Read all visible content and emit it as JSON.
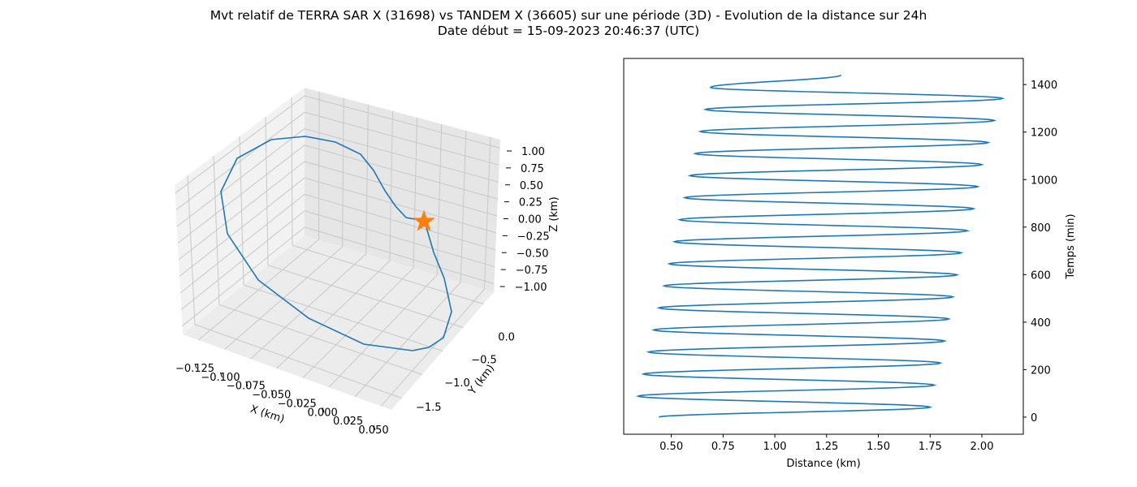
{
  "figure": {
    "title_line1": "Mvt relatif de TERRA SAR X (31698) vs TANDEM X (36605) sur une période (3D) - Evolution de la distance sur 24h",
    "title_line2": "Date début = 15-09-2023 20:46:37 (UTC)"
  },
  "colors": {
    "series": "#1f77b4",
    "marker": "#ff7f0e",
    "pane": "#f2f2f2",
    "grid": "#c8c8c8"
  },
  "chart_data": [
    {
      "type": "line",
      "projection": "3d",
      "title": "",
      "xlabel": "X (km)",
      "ylabel": "Y (km)",
      "zlabel": "Z (km)",
      "xlim": [
        -0.13,
        0.055
      ],
      "ylim": [
        -1.75,
        0.15
      ],
      "zlim": [
        -1.05,
        1.1
      ],
      "xticks": [
        "−0.125",
        "−0.100",
        "−0.075",
        "−0.050",
        "−0.025",
        "0.000",
        "0.025",
        "0.050"
      ],
      "yticks": [
        "−1.5",
        "−1.0",
        "−0.5",
        "0.0"
      ],
      "zticks": [
        "−1.00",
        "−0.75",
        "−0.50",
        "−0.25",
        "0.00",
        "0.25",
        "0.50",
        "0.75",
        "1.00"
      ],
      "grid": true,
      "series": [
        {
          "x": [
            0.0,
            0.018,
            0.033,
            0.046,
            0.053,
            0.055,
            0.051,
            0.042,
            0.029,
            0.011,
            -0.01,
            -0.034,
            -0.058,
            -0.081,
            -0.101,
            -0.116,
            -0.125,
            -0.128,
            -0.124,
            -0.113,
            -0.096,
            -0.074,
            -0.05,
            -0.024,
            0.0
          ],
          "y": [
            0.0,
            -0.125,
            -0.247,
            -0.365,
            -0.479,
            -0.586,
            -0.686,
            -0.777,
            -0.857,
            -0.926,
            -0.983,
            -1.026,
            -1.055,
            -1.07,
            -1.07,
            -1.055,
            -1.025,
            -0.981,
            -0.924,
            -0.854,
            -0.773,
            -0.681,
            -0.58,
            -0.47,
            -0.354
          ],
          "z": [
            0.0,
            -0.258,
            -0.5,
            -0.707,
            -0.866,
            -0.966,
            -1.0,
            -0.966,
            -0.866,
            -0.707,
            -0.5,
            -0.259,
            0.0,
            0.259,
            0.5,
            0.707,
            0.866,
            0.966,
            1.0,
            0.966,
            0.866,
            0.707,
            0.5,
            0.259,
            0.0
          ]
        }
      ],
      "markers": [
        {
          "x": 0.0,
          "y": 0.0,
          "z": 0.0,
          "shape": "star"
        }
      ]
    },
    {
      "type": "line",
      "title": "",
      "xlabel": "Distance (km)",
      "ylabel": "Temps (min)",
      "xlim": [
        0.27,
        2.2
      ],
      "ylim": [
        -72,
        1510
      ],
      "xticks": [
        0.5,
        0.75,
        1.0,
        1.25,
        1.5,
        1.75,
        2.0
      ],
      "xtick_labels": [
        "0.50",
        "0.75",
        "1.00",
        "1.25",
        "1.50",
        "1.75",
        "2.00"
      ],
      "yticks": [
        0,
        200,
        400,
        600,
        800,
        1000,
        1200,
        1400
      ],
      "ytick_labels": [
        "0",
        "200",
        "400",
        "600",
        "800",
        "1000",
        "1200",
        "1400"
      ],
      "y_axis_side": "right",
      "grid": false,
      "series": [
        {
          "period_min": 94.8,
          "start": {
            "t": 0,
            "distance": 0.44
          },
          "end": {
            "t": 1440,
            "distance": 1.32
          },
          "minima": [
            {
              "t": 41,
              "distance": 0.34
            },
            {
              "t": 136,
              "distance": 0.365
            },
            {
              "t": 231,
              "distance": 0.39
            },
            {
              "t": 326,
              "distance": 0.415
            },
            {
              "t": 420,
              "distance": 0.44
            },
            {
              "t": 515,
              "distance": 0.465
            },
            {
              "t": 610,
              "distance": 0.49
            },
            {
              "t": 705,
              "distance": 0.515
            },
            {
              "t": 800,
              "distance": 0.54
            },
            {
              "t": 895,
              "distance": 0.565
            },
            {
              "t": 990,
              "distance": 0.59
            },
            {
              "t": 1084,
              "distance": 0.615
            },
            {
              "t": 1179,
              "distance": 0.64
            },
            {
              "t": 1274,
              "distance": 0.665
            },
            {
              "t": 1369,
              "distance": 0.69
            }
          ],
          "maxima": [
            {
              "t": 42,
              "distance": 1.75
            },
            {
              "t": 137,
              "distance": 1.77
            },
            {
              "t": 232,
              "distance": 1.8
            },
            {
              "t": 327,
              "distance": 1.82
            },
            {
              "t": 421,
              "distance": 1.84
            },
            {
              "t": 516,
              "distance": 1.86
            },
            {
              "t": 611,
              "distance": 1.88
            },
            {
              "t": 706,
              "distance": 1.9
            },
            {
              "t": 801,
              "distance": 1.93
            },
            {
              "t": 896,
              "distance": 1.96
            },
            {
              "t": 991,
              "distance": 1.98
            },
            {
              "t": 1085,
              "distance": 2.0
            },
            {
              "t": 1180,
              "distance": 2.03
            },
            {
              "t": 1275,
              "distance": 2.06
            },
            {
              "t": 1370,
              "distance": 2.1
            }
          ]
        }
      ]
    }
  ]
}
